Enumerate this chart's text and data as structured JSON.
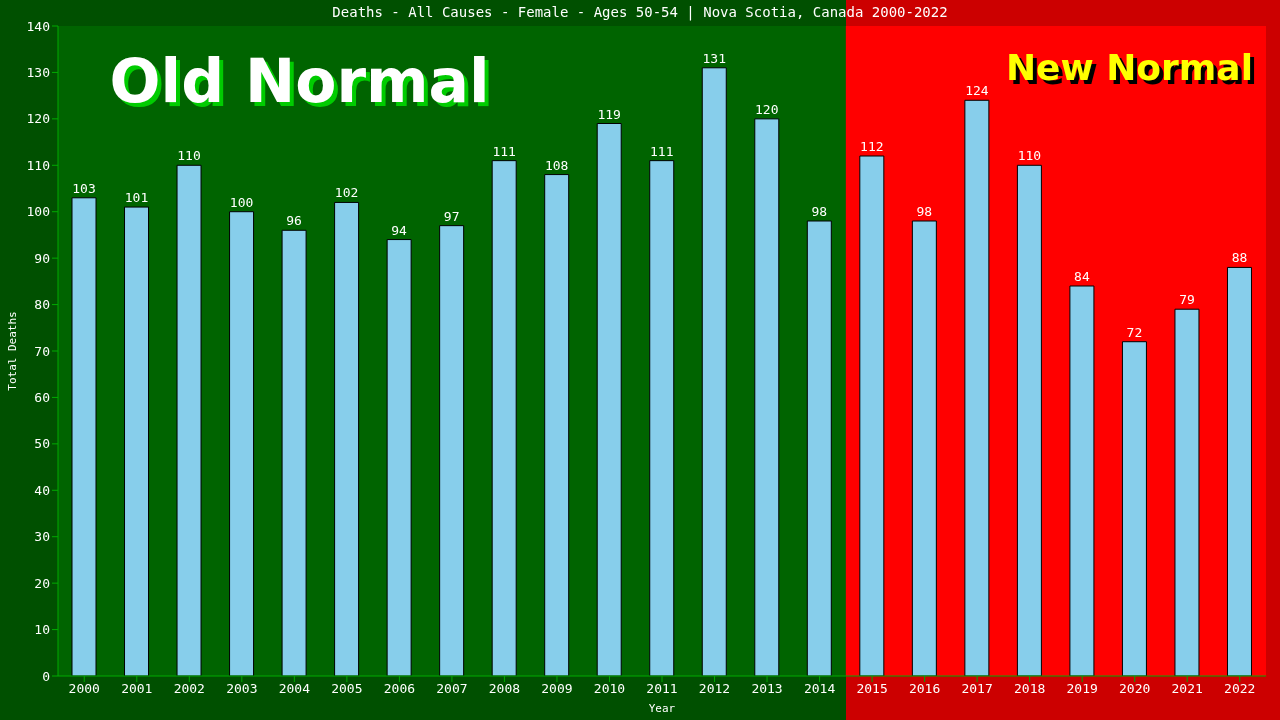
{
  "chart_data": {
    "type": "bar",
    "title": "Deaths - All Causes - Female - Ages 50-54 | Nova Scotia, Canada 2000-2022",
    "xlabel": "Year",
    "ylabel": "Total Deaths",
    "categories": [
      "2000",
      "2001",
      "2002",
      "2003",
      "2004",
      "2005",
      "2006",
      "2007",
      "2008",
      "2009",
      "2010",
      "2011",
      "2012",
      "2013",
      "2014",
      "2015",
      "2016",
      "2017",
      "2018",
      "2019",
      "2020",
      "2021",
      "2022"
    ],
    "values": [
      103,
      101,
      110,
      100,
      96,
      102,
      94,
      97,
      111,
      108,
      119,
      111,
      131,
      120,
      98,
      112,
      98,
      124,
      110,
      84,
      72,
      79,
      88
    ],
    "color": "#87ceeb",
    "data_labels": true,
    "ylim": [
      0,
      140
    ],
    "yticks": [
      0,
      10,
      20,
      30,
      40,
      50,
      60,
      70,
      80,
      90,
      100,
      110,
      120,
      130,
      140
    ],
    "grid": false,
    "legend": false,
    "bands": [
      {
        "axis": "x",
        "from": "2000",
        "to": "2014",
        "label": "Old Normal",
        "color": "#006400"
      },
      {
        "axis": "x",
        "from": "2015",
        "to": "2022",
        "label": "New Normal",
        "color": "#ff0000"
      }
    ]
  }
}
